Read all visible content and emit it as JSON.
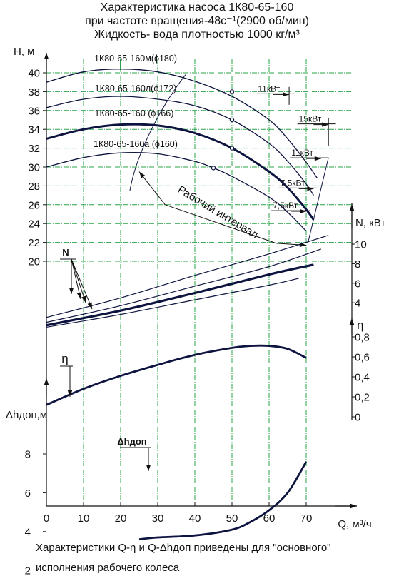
{
  "header": {
    "title_line1": "Характеристика насоса 1К80-65-160",
    "title_line2": "при частоте вращения-48с⁻¹(2900 об/мин)",
    "title_line3": "Жидкость- вода плотностью 1000 кг/м³"
  },
  "footer": {
    "note_line1": "Характеристики Q-η и Q-Δhдоп приведены для \"основного\"",
    "note_line2": "исполнения рабочего колеса"
  },
  "chart_data": {
    "type": "line",
    "x_axis": {
      "label": "Q, м³/ч",
      "range": [
        0,
        75
      ],
      "ticks": [
        0,
        10,
        20,
        30,
        40,
        50,
        60,
        70
      ]
    },
    "h_axis": {
      "label": "H, м",
      "range": [
        20,
        41
      ],
      "ticks": [
        20,
        22,
        24,
        26,
        28,
        30,
        32,
        34,
        36,
        38,
        40
      ]
    },
    "n_axis": {
      "label": "N, кВт",
      "range": [
        2,
        11
      ],
      "ticks": [
        4,
        6,
        8,
        10
      ]
    },
    "eta_axis": {
      "label": "η",
      "range": [
        0,
        0.8
      ],
      "ticks": [
        0,
        0.2,
        0.4,
        0.6,
        0.8
      ]
    },
    "dh_axis": {
      "label": "Δhдоп,м",
      "range": [
        1,
        9
      ],
      "ticks": [
        2,
        4,
        6,
        8
      ]
    },
    "head_curves": [
      {
        "name": "1К80-65-160м(ϕ180)",
        "bold": false,
        "x": [
          0,
          10,
          20,
          30,
          40,
          50,
          60,
          65,
          70,
          73
        ],
        "y": [
          39.0,
          40.1,
          40.4,
          40.1,
          39.1,
          37.5,
          35.0,
          33.0,
          30.5,
          28.8
        ]
      },
      {
        "name": "1К80-65-160л(ϕ172)",
        "bold": false,
        "x": [
          0,
          10,
          20,
          30,
          40,
          50,
          60,
          65,
          70,
          72
        ],
        "y": [
          36.3,
          37.2,
          37.5,
          37.2,
          36.5,
          35.0,
          32.5,
          30.6,
          28.2,
          27.0
        ]
      },
      {
        "name": "1К80-65-160 (ϕ166)",
        "bold": true,
        "x": [
          0,
          10,
          20,
          30,
          40,
          50,
          60,
          65,
          70,
          72
        ],
        "y": [
          33.0,
          34.0,
          34.5,
          34.4,
          33.6,
          32.0,
          29.5,
          27.8,
          25.5,
          24.4
        ]
      },
      {
        "name": "1К80-65-160а (ϕ160)",
        "bold": false,
        "x": [
          0,
          10,
          20,
          30,
          40,
          45,
          50,
          60,
          65,
          70
        ],
        "y": [
          30.0,
          31.0,
          31.5,
          31.4,
          30.6,
          29.9,
          29.0,
          26.8,
          25.2,
          23.2
        ]
      }
    ],
    "head_markers": [
      {
        "x": 50,
        "y": 38.0
      },
      {
        "x": 50,
        "y": 35.0
      },
      {
        "x": 50,
        "y": 32.0
      },
      {
        "x": 45,
        "y": 29.9
      }
    ],
    "power_labels": [
      {
        "text": "11кВт",
        "x": 57,
        "y": 38.0
      },
      {
        "text": "15кВт",
        "x": 68,
        "y": 34.8
      },
      {
        "text": "11кВт",
        "x": 66,
        "y": 31.2
      },
      {
        "text": "7,5кВт",
        "x": 63,
        "y": 28.0
      },
      {
        "text": "7,5кВт",
        "x": 61,
        "y": 25.6
      }
    ],
    "working_range_label": "Рабочий интервал",
    "power_curves": {
      "label": "N",
      "series": [
        {
          "bold": false,
          "x": [
            0,
            20,
            40,
            60,
            76
          ],
          "y": [
            2.5,
            4.5,
            6.8,
            9.0,
            10.9
          ]
        },
        {
          "bold": false,
          "x": [
            0,
            20,
            40,
            60,
            74
          ],
          "y": [
            2.0,
            3.7,
            5.7,
            7.7,
            9.5
          ]
        },
        {
          "bold": true,
          "x": [
            0,
            20,
            40,
            60,
            72
          ],
          "y": [
            1.7,
            3.2,
            5.0,
            6.9,
            7.9
          ]
        },
        {
          "bold": false,
          "x": [
            0,
            20,
            40,
            60,
            68
          ],
          "y": [
            1.5,
            2.8,
            4.3,
            5.8,
            6.5
          ]
        }
      ]
    },
    "efficiency_curve": {
      "label": "η",
      "x": [
        0,
        10,
        20,
        30,
        40,
        50,
        55,
        60,
        65,
        70
      ],
      "y": [
        0.12,
        0.28,
        0.41,
        0.52,
        0.62,
        0.69,
        0.71,
        0.71,
        0.68,
        0.59
      ]
    },
    "npsh_curve": {
      "label": "Δhдоп",
      "x": [
        25,
        30,
        40,
        50,
        55,
        60,
        65,
        70
      ],
      "y": [
        3.6,
        3.7,
        3.8,
        4.1,
        4.5,
        5.1,
        6.0,
        7.6
      ]
    }
  }
}
